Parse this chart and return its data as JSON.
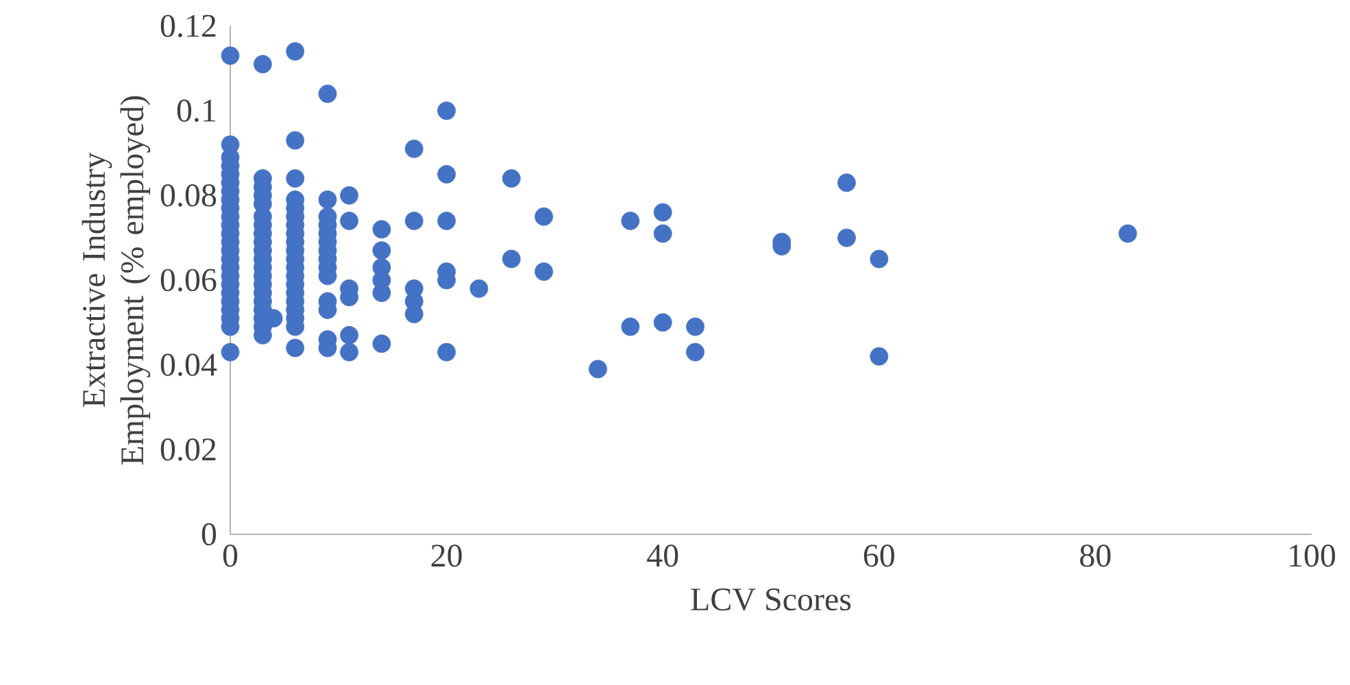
{
  "chart_data": {
    "type": "scatter",
    "xlabel": "LCV Scores",
    "ylabel": "Extractive Industry Employment (% employed)",
    "xlim": [
      0,
      100
    ],
    "xticks": [
      0,
      20,
      40,
      60,
      80,
      100
    ],
    "ylim": [
      0,
      0.12
    ],
    "yticks": [
      0,
      0.02,
      0.04,
      0.06,
      0.08,
      0.1,
      0.12
    ],
    "grid": false,
    "series": [
      {
        "color": "#4472c4",
        "x": [
          0,
          0,
          0,
          0,
          0,
          0,
          0,
          0,
          0,
          0,
          0,
          0,
          0,
          0,
          0,
          0,
          0,
          0,
          0,
          0,
          0,
          0,
          0,
          0,
          3,
          3,
          3,
          3,
          3,
          3,
          3,
          3,
          3,
          3,
          3,
          3,
          3,
          3,
          3,
          3,
          3,
          3,
          3,
          3,
          4,
          6,
          6,
          6,
          6,
          6,
          6,
          6,
          6,
          6,
          6,
          6,
          6,
          6,
          6,
          6,
          6,
          6,
          6,
          6,
          6,
          9,
          9,
          9,
          9,
          9,
          9,
          9,
          9,
          9,
          9,
          9,
          9,
          9,
          9,
          11,
          11,
          11,
          11,
          11,
          11,
          14,
          14,
          14,
          14,
          14,
          14,
          17,
          17,
          17,
          17,
          17,
          20,
          20,
          20,
          20,
          20,
          20,
          23,
          26,
          26,
          29,
          29,
          34,
          37,
          37,
          40,
          40,
          40,
          43,
          43,
          51,
          51,
          57,
          57,
          60,
          60,
          83
        ],
        "values": [
          0.113,
          0.092,
          0.089,
          0.087,
          0.085,
          0.083,
          0.081,
          0.079,
          0.077,
          0.075,
          0.073,
          0.071,
          0.069,
          0.067,
          0.065,
          0.063,
          0.061,
          0.059,
          0.057,
          0.055,
          0.053,
          0.051,
          0.049,
          0.043,
          0.111,
          0.084,
          0.082,
          0.08,
          0.078,
          0.075,
          0.073,
          0.071,
          0.069,
          0.067,
          0.065,
          0.063,
          0.061,
          0.059,
          0.057,
          0.055,
          0.053,
          0.051,
          0.049,
          0.047,
          0.051,
          0.114,
          0.093,
          0.084,
          0.079,
          0.077,
          0.075,
          0.073,
          0.071,
          0.069,
          0.067,
          0.065,
          0.063,
          0.061,
          0.059,
          0.057,
          0.055,
          0.053,
          0.051,
          0.049,
          0.044,
          0.104,
          0.079,
          0.075,
          0.073,
          0.071,
          0.069,
          0.067,
          0.065,
          0.063,
          0.061,
          0.055,
          0.053,
          0.046,
          0.044,
          0.08,
          0.074,
          0.058,
          0.056,
          0.047,
          0.043,
          0.072,
          0.067,
          0.063,
          0.06,
          0.057,
          0.045,
          0.091,
          0.074,
          0.058,
          0.055,
          0.052,
          0.1,
          0.085,
          0.074,
          0.062,
          0.06,
          0.043,
          0.058,
          0.084,
          0.065,
          0.075,
          0.062,
          0.039,
          0.074,
          0.049,
          0.076,
          0.071,
          0.05,
          0.049,
          0.043,
          0.069,
          0.068,
          0.083,
          0.07,
          0.065,
          0.042,
          0.071
        ]
      }
    ]
  }
}
